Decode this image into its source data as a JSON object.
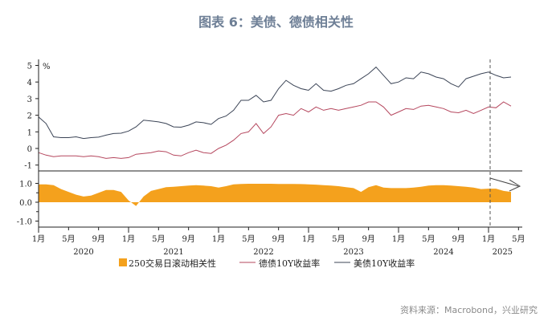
{
  "title": "图表 6：美债、德债相关性",
  "source": "资料来源：Macrobond，兴业研究",
  "chart_data": [
    {
      "type": "line",
      "unit": "%",
      "ylim": [
        -1,
        5
      ],
      "yticks": [
        "5",
        "4",
        "3",
        "2",
        "1",
        "0",
        "-1"
      ],
      "x_start": "2020-01",
      "x_frequency": "monthly",
      "series": [
        {
          "name": "美债10Y收益率",
          "color": "#3b4456",
          "values": [
            1.9,
            1.5,
            0.7,
            0.65,
            0.65,
            0.7,
            0.6,
            0.65,
            0.68,
            0.8,
            0.9,
            0.92,
            1.05,
            1.3,
            1.7,
            1.65,
            1.6,
            1.5,
            1.3,
            1.28,
            1.4,
            1.6,
            1.55,
            1.45,
            1.8,
            1.95,
            2.3,
            2.9,
            2.9,
            3.2,
            2.8,
            2.9,
            3.6,
            4.1,
            3.8,
            3.6,
            3.5,
            3.9,
            3.5,
            3.45,
            3.6,
            3.8,
            3.9,
            4.2,
            4.5,
            4.9,
            4.4,
            3.9,
            4.0,
            4.25,
            4.2,
            4.6,
            4.5,
            4.3,
            4.2,
            3.9,
            3.7,
            4.2,
            4.35,
            4.5,
            4.6,
            4.4,
            4.25,
            4.3
          ]
        },
        {
          "name": "德债10Y收益率",
          "color": "#b5475e",
          "values": [
            -0.25,
            -0.4,
            -0.5,
            -0.45,
            -0.45,
            -0.45,
            -0.5,
            -0.45,
            -0.5,
            -0.6,
            -0.55,
            -0.6,
            -0.55,
            -0.35,
            -0.3,
            -0.25,
            -0.15,
            -0.2,
            -0.4,
            -0.45,
            -0.25,
            -0.1,
            -0.25,
            -0.3,
            0.0,
            0.2,
            0.5,
            0.9,
            1.0,
            1.5,
            0.9,
            1.3,
            2.0,
            2.1,
            2.0,
            2.4,
            2.2,
            2.5,
            2.3,
            2.4,
            2.3,
            2.4,
            2.5,
            2.6,
            2.8,
            2.8,
            2.5,
            2.0,
            2.2,
            2.4,
            2.35,
            2.55,
            2.6,
            2.5,
            2.4,
            2.2,
            2.15,
            2.3,
            2.1,
            2.3,
            2.5,
            2.45,
            2.8,
            2.55
          ]
        }
      ]
    },
    {
      "type": "area",
      "ylim": [
        -1,
        1
      ],
      "yticks": [
        "1.0",
        "0.0",
        "-1.0"
      ],
      "x_start": "2020-01",
      "x_frequency": "monthly",
      "series": [
        {
          "name": "250交易日滚动相关性",
          "color": "#f4a11d",
          "values": [
            0.95,
            0.95,
            0.9,
            0.7,
            0.55,
            0.4,
            0.3,
            0.35,
            0.5,
            0.65,
            0.65,
            0.55,
            0.1,
            -0.2,
            0.3,
            0.6,
            0.7,
            0.8,
            0.82,
            0.85,
            0.88,
            0.9,
            0.88,
            0.85,
            0.78,
            0.85,
            0.95,
            0.97,
            0.98,
            0.98,
            0.98,
            0.98,
            0.97,
            0.97,
            0.97,
            0.96,
            0.95,
            0.93,
            0.9,
            0.88,
            0.85,
            0.8,
            0.75,
            0.55,
            0.8,
            0.9,
            0.78,
            0.75,
            0.75,
            0.75,
            0.78,
            0.82,
            0.88,
            0.9,
            0.9,
            0.88,
            0.85,
            0.82,
            0.78,
            0.7,
            0.72,
            0.72,
            0.6,
            0.55
          ]
        }
      ]
    }
  ],
  "x_axis": {
    "month_ticks": [
      "1月",
      "5月",
      "9月",
      "1月",
      "5月",
      "9月",
      "1月",
      "5月",
      "9月",
      "1月",
      "5月",
      "9月",
      "1月",
      "5月",
      "9月",
      "1月",
      "5月"
    ],
    "years": [
      "2020",
      "2021",
      "2022",
      "2023",
      "2024",
      "2025"
    ]
  },
  "annotations": {
    "vertical_dashed_line": "2025-01",
    "arrow": "right"
  },
  "legend": [
    "250交易日滚动相关性",
    "德债10Y收益率",
    "美债10Y收益率"
  ]
}
